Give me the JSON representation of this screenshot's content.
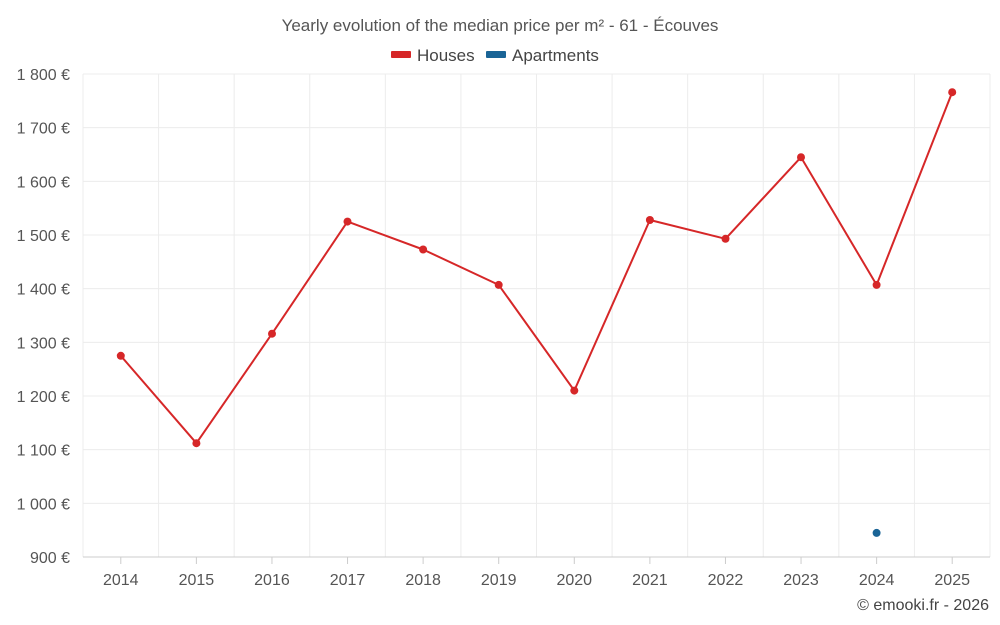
{
  "chart_data": {
    "type": "line",
    "title": "Yearly evolution of the median price per m² - 61 - Écouves",
    "categories": [
      "2014",
      "2015",
      "2016",
      "2017",
      "2018",
      "2019",
      "2020",
      "2021",
      "2022",
      "2023",
      "2024",
      "2025"
    ],
    "series": [
      {
        "name": "Houses",
        "color": "#d62728",
        "values": [
          1275,
          1112,
          1316,
          1525,
          1473,
          1407,
          1210,
          1528,
          1493,
          1645,
          1407,
          1766
        ]
      },
      {
        "name": "Apartments",
        "color": "#1a6496",
        "values": [
          null,
          null,
          null,
          null,
          null,
          null,
          null,
          null,
          null,
          null,
          945,
          null
        ]
      }
    ],
    "ylim": [
      900,
      1800
    ],
    "yticks": [
      900,
      1000,
      1100,
      1200,
      1300,
      1400,
      1500,
      1600,
      1700,
      1800
    ],
    "ytick_labels": [
      "900 €",
      "1 000 €",
      "1 100 €",
      "1 200 €",
      "1 300 €",
      "1 400 €",
      "1 500 €",
      "1 600 €",
      "1 700 €",
      "1 800 €"
    ],
    "xlabel": "",
    "ylabel": "",
    "grid": true,
    "legend_position": "top-center"
  },
  "credit": "© emooki.fr - 2026"
}
